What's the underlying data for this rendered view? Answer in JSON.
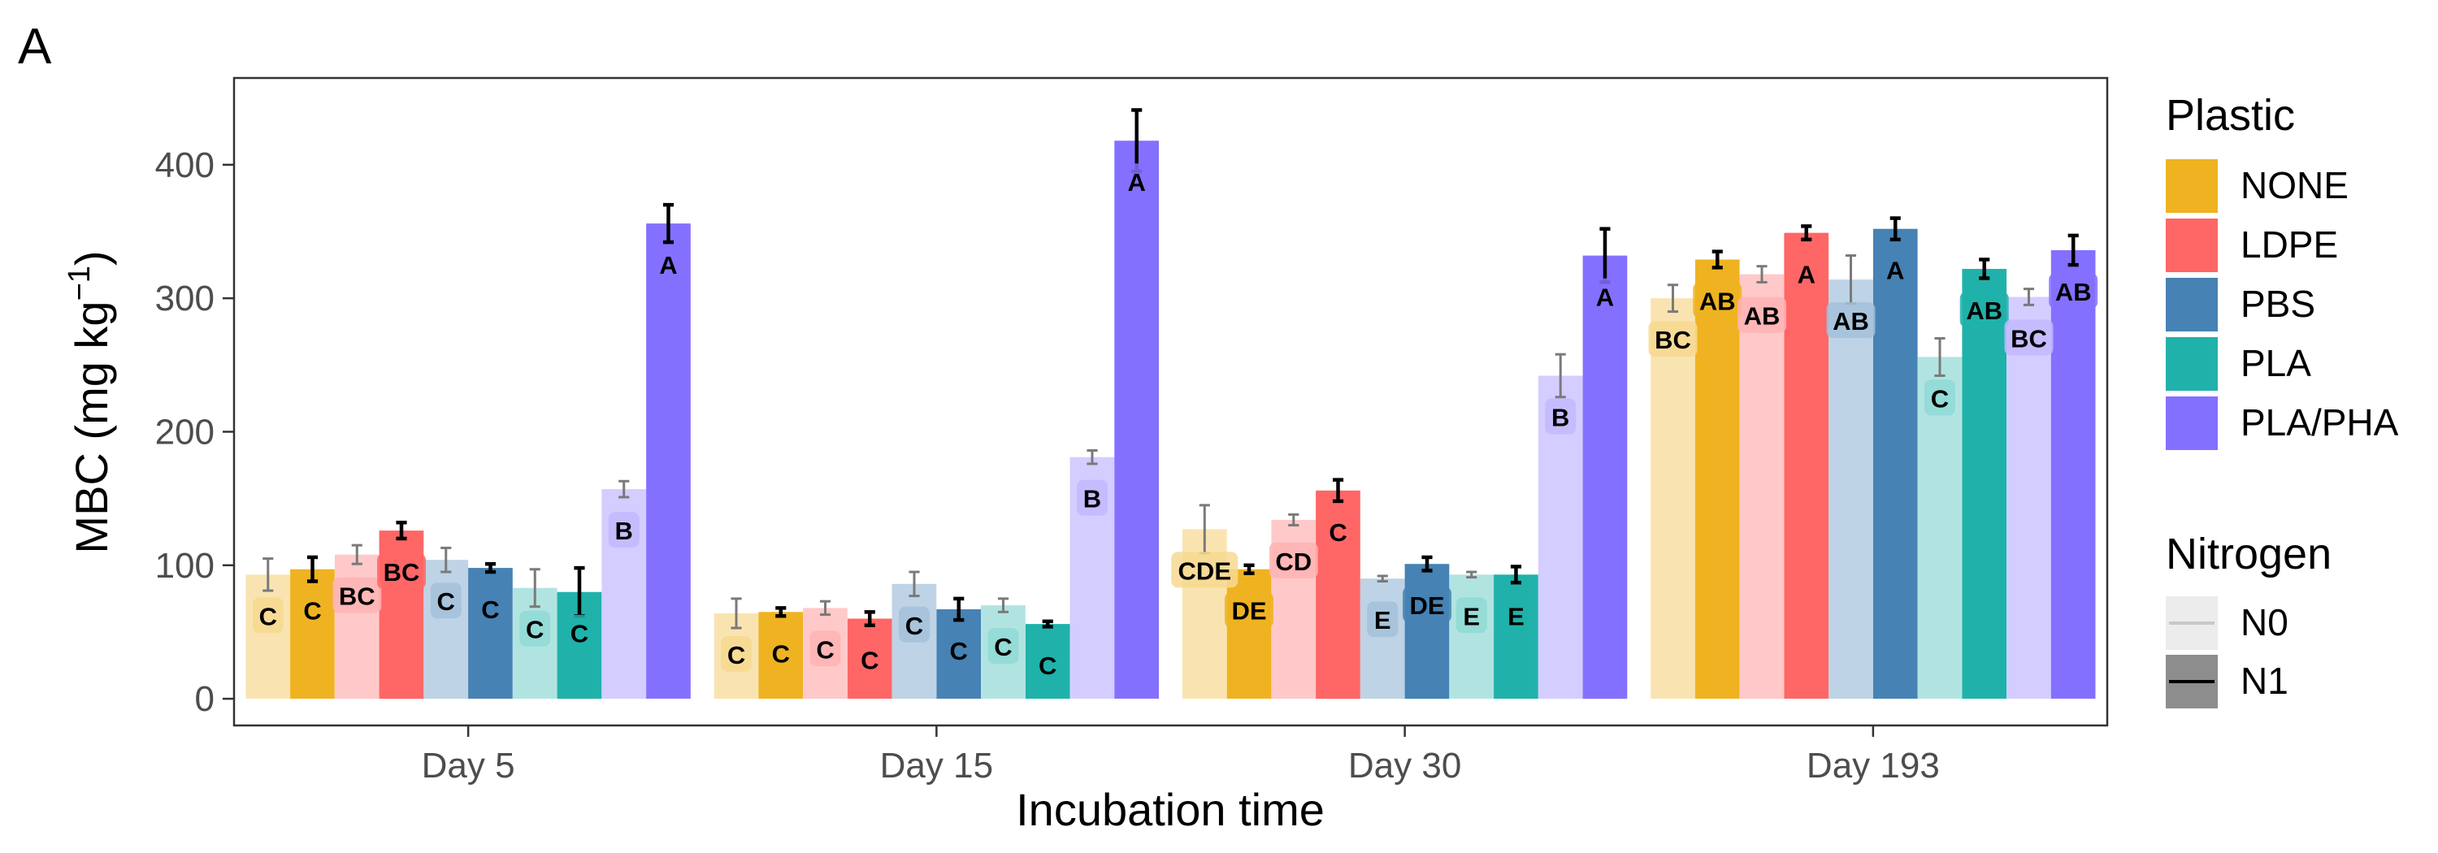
{
  "panel_label": "A",
  "chart_data": {
    "type": "bar",
    "xlabel": "Incubation time",
    "ylabel_main": "MBC (mg kg",
    "ylabel_sup": "−1",
    "ylabel_close": ")",
    "ylim": [
      -20,
      465
    ],
    "yticks": [
      0,
      100,
      200,
      300,
      400
    ],
    "categories": [
      "Day 5",
      "Day 15",
      "Day 30",
      "Day 193"
    ],
    "bar_order": [
      "NONE|N0",
      "NONE|N1",
      "LDPE|N0",
      "LDPE|N1",
      "PBS|N0",
      "PBS|N1",
      "PLA|N0",
      "PLA|N1",
      "PLA/PHA|N0",
      "PLA/PHA|N1"
    ],
    "plastics": [
      {
        "name": "NONE",
        "color": "#EFB321"
      },
      {
        "name": "LDPE",
        "color": "#FF6666"
      },
      {
        "name": "PBS",
        "color": "#4682B4"
      },
      {
        "name": "PLA",
        "color": "#20B2AA"
      },
      {
        "name": "PLA/PHA",
        "color": "#8470FF"
      }
    ],
    "nitrogen": [
      {
        "name": "N0",
        "alpha": 0.35
      },
      {
        "name": "N1",
        "alpha": 1.0
      }
    ],
    "values": [
      [
        93,
        97,
        108,
        126,
        104,
        98,
        83,
        80,
        157,
        356
      ],
      [
        64,
        65,
        68,
        60,
        86,
        67,
        70,
        56,
        181,
        418
      ],
      [
        127,
        97,
        134,
        156,
        90,
        101,
        93,
        93,
        242,
        332
      ],
      [
        300,
        329,
        318,
        349,
        314,
        352,
        256,
        322,
        301,
        336
      ]
    ],
    "errors": [
      [
        12,
        9,
        7,
        6,
        9,
        3,
        14,
        18,
        6,
        14
      ],
      [
        11,
        3,
        5,
        5,
        9,
        8,
        5,
        2,
        5,
        23
      ],
      [
        18,
        3,
        4,
        8,
        2,
        5,
        2,
        6,
        16,
        20
      ],
      [
        10,
        6,
        6,
        5,
        18,
        8,
        14,
        7,
        6,
        11
      ]
    ],
    "letters": [
      [
        "C",
        "C",
        "BC",
        "BC",
        "C",
        "C",
        "C",
        "C",
        "B",
        "A"
      ],
      [
        "C",
        "C",
        "C",
        "C",
        "C",
        "C",
        "C",
        "C",
        "B",
        "A"
      ],
      [
        "CDE",
        "DE",
        "CD",
        "C",
        "E",
        "DE",
        "E",
        "E",
        "B",
        "A"
      ],
      [
        "BC",
        "AB",
        "AB",
        "A",
        "AB",
        "A",
        "C",
        "AB",
        "BC",
        "AB"
      ]
    ],
    "legend": {
      "plastic_title": "Plastic",
      "nitrogen_title": "Nitrogen",
      "position": "right"
    },
    "grid": false
  }
}
